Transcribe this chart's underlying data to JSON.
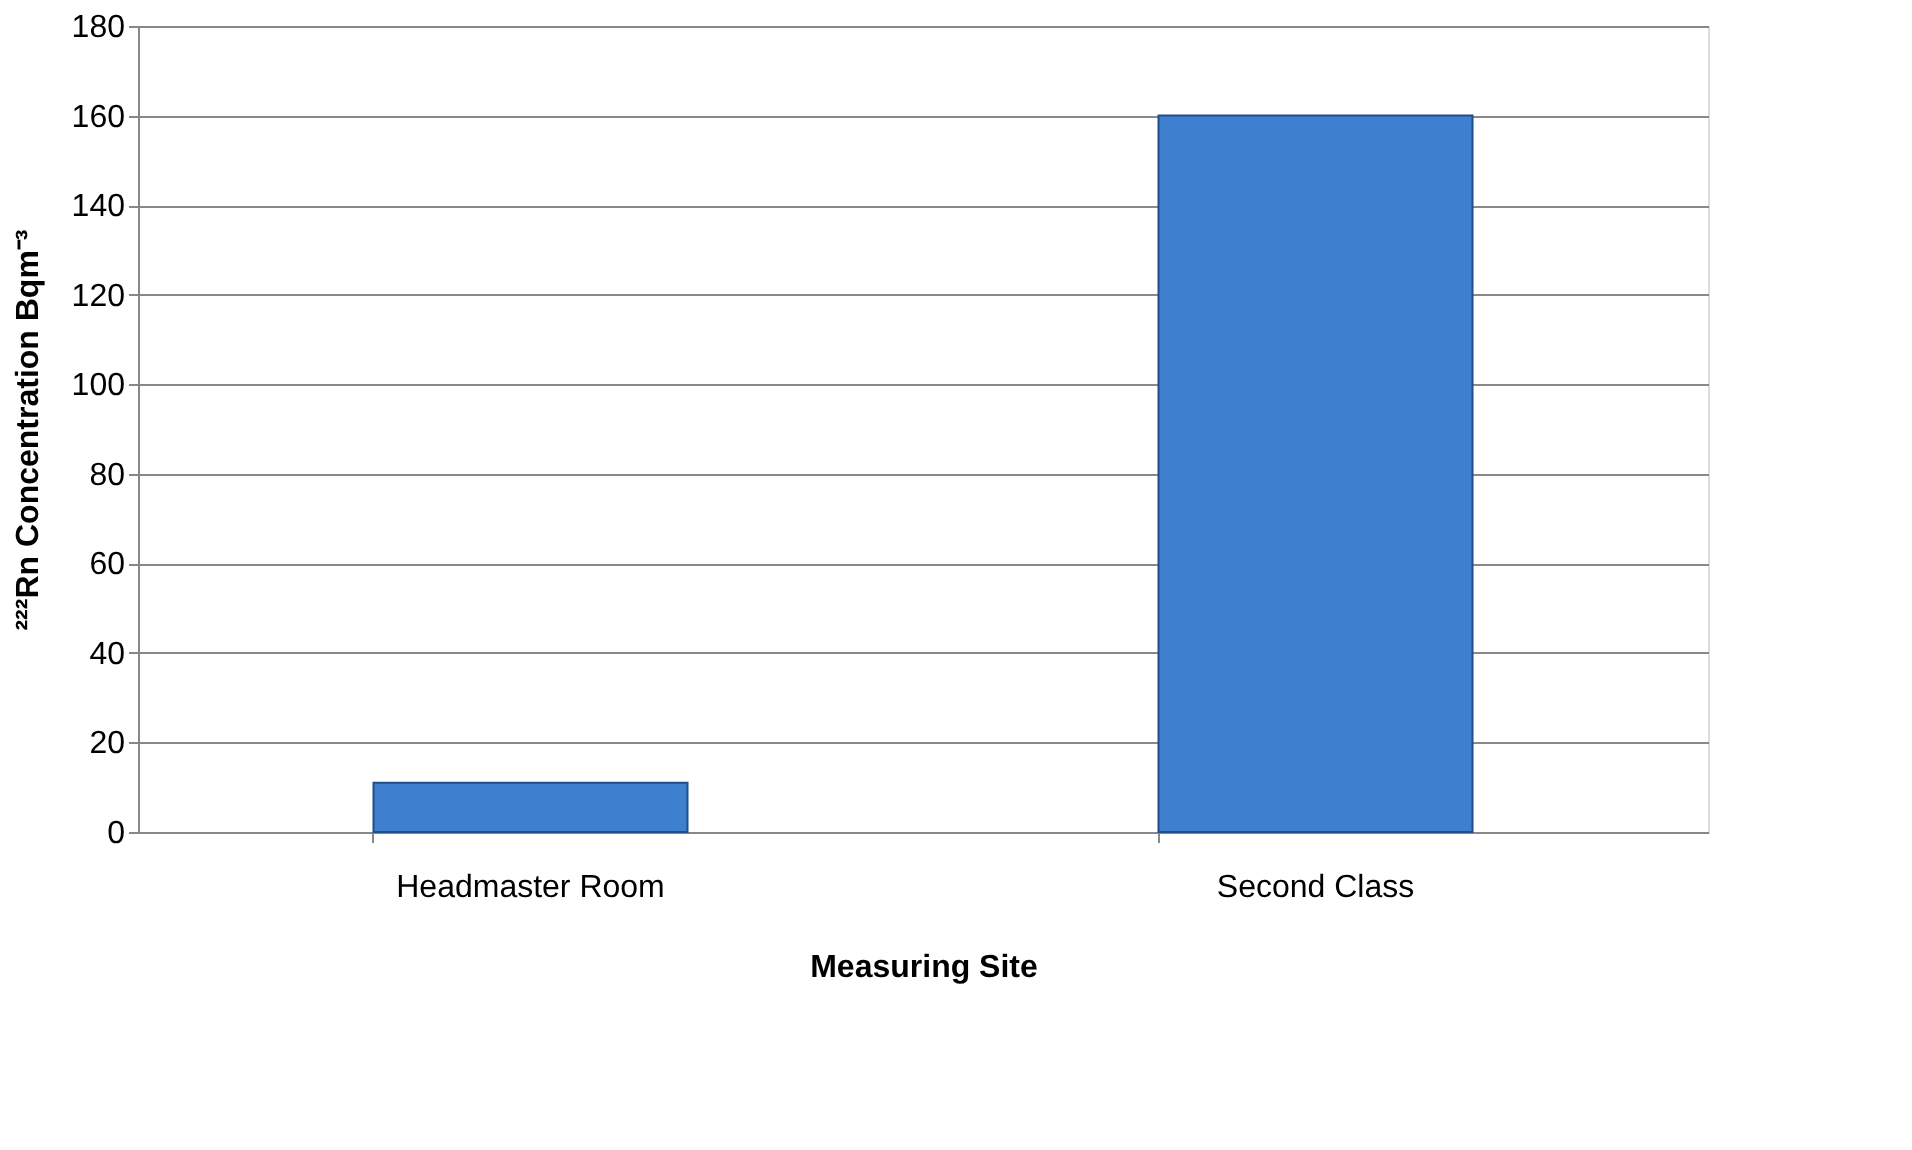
{
  "chart_data": {
    "type": "bar",
    "xlabel": "Measuring Site",
    "ylabel": "²²²Rn  Concentration Bqm⁻³",
    "categories": [
      "Headmaster Room",
      "Second Class"
    ],
    "values": [
      11,
      160
    ],
    "color": "#3f7fd0",
    "ylim": [
      0,
      180
    ],
    "yticks": [
      0,
      20,
      40,
      60,
      80,
      100,
      120,
      140,
      160,
      180
    ],
    "grid": "y"
  }
}
